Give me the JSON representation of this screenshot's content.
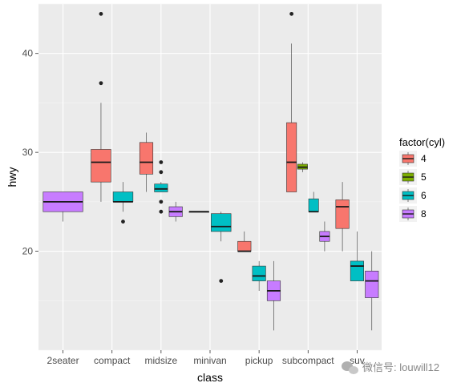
{
  "chart_data": {
    "type": "boxplot",
    "xlabel": "class",
    "ylabel": "hwy",
    "ylim": [
      10,
      45
    ],
    "yticks": [
      20,
      30,
      40
    ],
    "categories": [
      "2seater",
      "compact",
      "midsize",
      "minivan",
      "pickup",
      "subcompact",
      "suv"
    ],
    "grid": true,
    "legend": {
      "title": "factor(cyl)",
      "position": "right",
      "entries": [
        {
          "label": "4",
          "color": "#F8766D"
        },
        {
          "label": "5",
          "color": "#7CAE00"
        },
        {
          "label": "6",
          "color": "#00BFC4"
        },
        {
          "label": "8",
          "color": "#C77CFF"
        }
      ]
    },
    "groups": [
      {
        "category": "2seater",
        "boxes": [
          {
            "cyl": "8",
            "min": 23,
            "q1": 24,
            "median": 25,
            "q3": 26,
            "max": 26,
            "outliers": []
          }
        ]
      },
      {
        "category": "compact",
        "boxes": [
          {
            "cyl": "4",
            "min": 25,
            "q1": 27,
            "median": 29,
            "q3": 30.3,
            "max": 35,
            "outliers": [
              37,
              44
            ]
          },
          {
            "cyl": "6",
            "min": 24,
            "q1": 25,
            "median": 25,
            "q3": 26,
            "max": 27,
            "outliers": [
              23
            ]
          }
        ]
      },
      {
        "category": "midsize",
        "boxes": [
          {
            "cyl": "4",
            "min": 26,
            "q1": 27.8,
            "median": 29,
            "q3": 31,
            "max": 32,
            "outliers": []
          },
          {
            "cyl": "6",
            "min": 26,
            "q1": 26,
            "median": 26.3,
            "q3": 26.8,
            "max": 27,
            "outliers": [
              29,
              28,
              25,
              24
            ]
          },
          {
            "cyl": "8",
            "min": 23,
            "q1": 23.5,
            "median": 24,
            "q3": 24.5,
            "max": 25,
            "outliers": []
          }
        ]
      },
      {
        "category": "minivan",
        "boxes": [
          {
            "cyl": "4",
            "min": 24,
            "q1": 24,
            "median": 24,
            "q3": 24,
            "max": 24,
            "outliers": []
          },
          {
            "cyl": "6",
            "min": 21,
            "q1": 22,
            "median": 22.5,
            "q3": 23.8,
            "max": 24,
            "outliers": [
              17
            ]
          }
        ]
      },
      {
        "category": "pickup",
        "boxes": [
          {
            "cyl": "4",
            "min": 20,
            "q1": 20,
            "median": 20,
            "q3": 21,
            "max": 22,
            "outliers": []
          },
          {
            "cyl": "6",
            "min": 16,
            "q1": 17,
            "median": 17.5,
            "q3": 18.5,
            "max": 19,
            "outliers": []
          },
          {
            "cyl": "8",
            "min": 12,
            "q1": 15,
            "median": 16,
            "q3": 17,
            "max": 19,
            "outliers": []
          }
        ]
      },
      {
        "category": "subcompact",
        "boxes": [
          {
            "cyl": "4",
            "min": 26,
            "q1": 26,
            "median": 29,
            "q3": 33,
            "max": 41,
            "outliers": [
              44
            ]
          },
          {
            "cyl": "5",
            "min": 28,
            "q1": 28.3,
            "median": 28.5,
            "q3": 28.8,
            "max": 29,
            "outliers": []
          },
          {
            "cyl": "6",
            "min": 24,
            "q1": 24,
            "median": 24,
            "q3": 25.3,
            "max": 26,
            "outliers": []
          },
          {
            "cyl": "8",
            "min": 20,
            "q1": 21,
            "median": 21.5,
            "q3": 22,
            "max": 23,
            "outliers": []
          }
        ]
      },
      {
        "category": "suv",
        "boxes": [
          {
            "cyl": "4",
            "min": 20,
            "q1": 22.3,
            "median": 24.5,
            "q3": 25.2,
            "max": 27,
            "outliers": []
          },
          {
            "cyl": "6",
            "min": 17,
            "q1": 17,
            "median": 18.5,
            "q3": 19,
            "max": 22,
            "outliers": []
          },
          {
            "cyl": "8",
            "min": 12,
            "q1": 15.3,
            "median": 17,
            "q3": 18,
            "max": 20,
            "outliers": []
          }
        ]
      }
    ]
  },
  "watermark": {
    "text": "微信号: louwill12"
  }
}
